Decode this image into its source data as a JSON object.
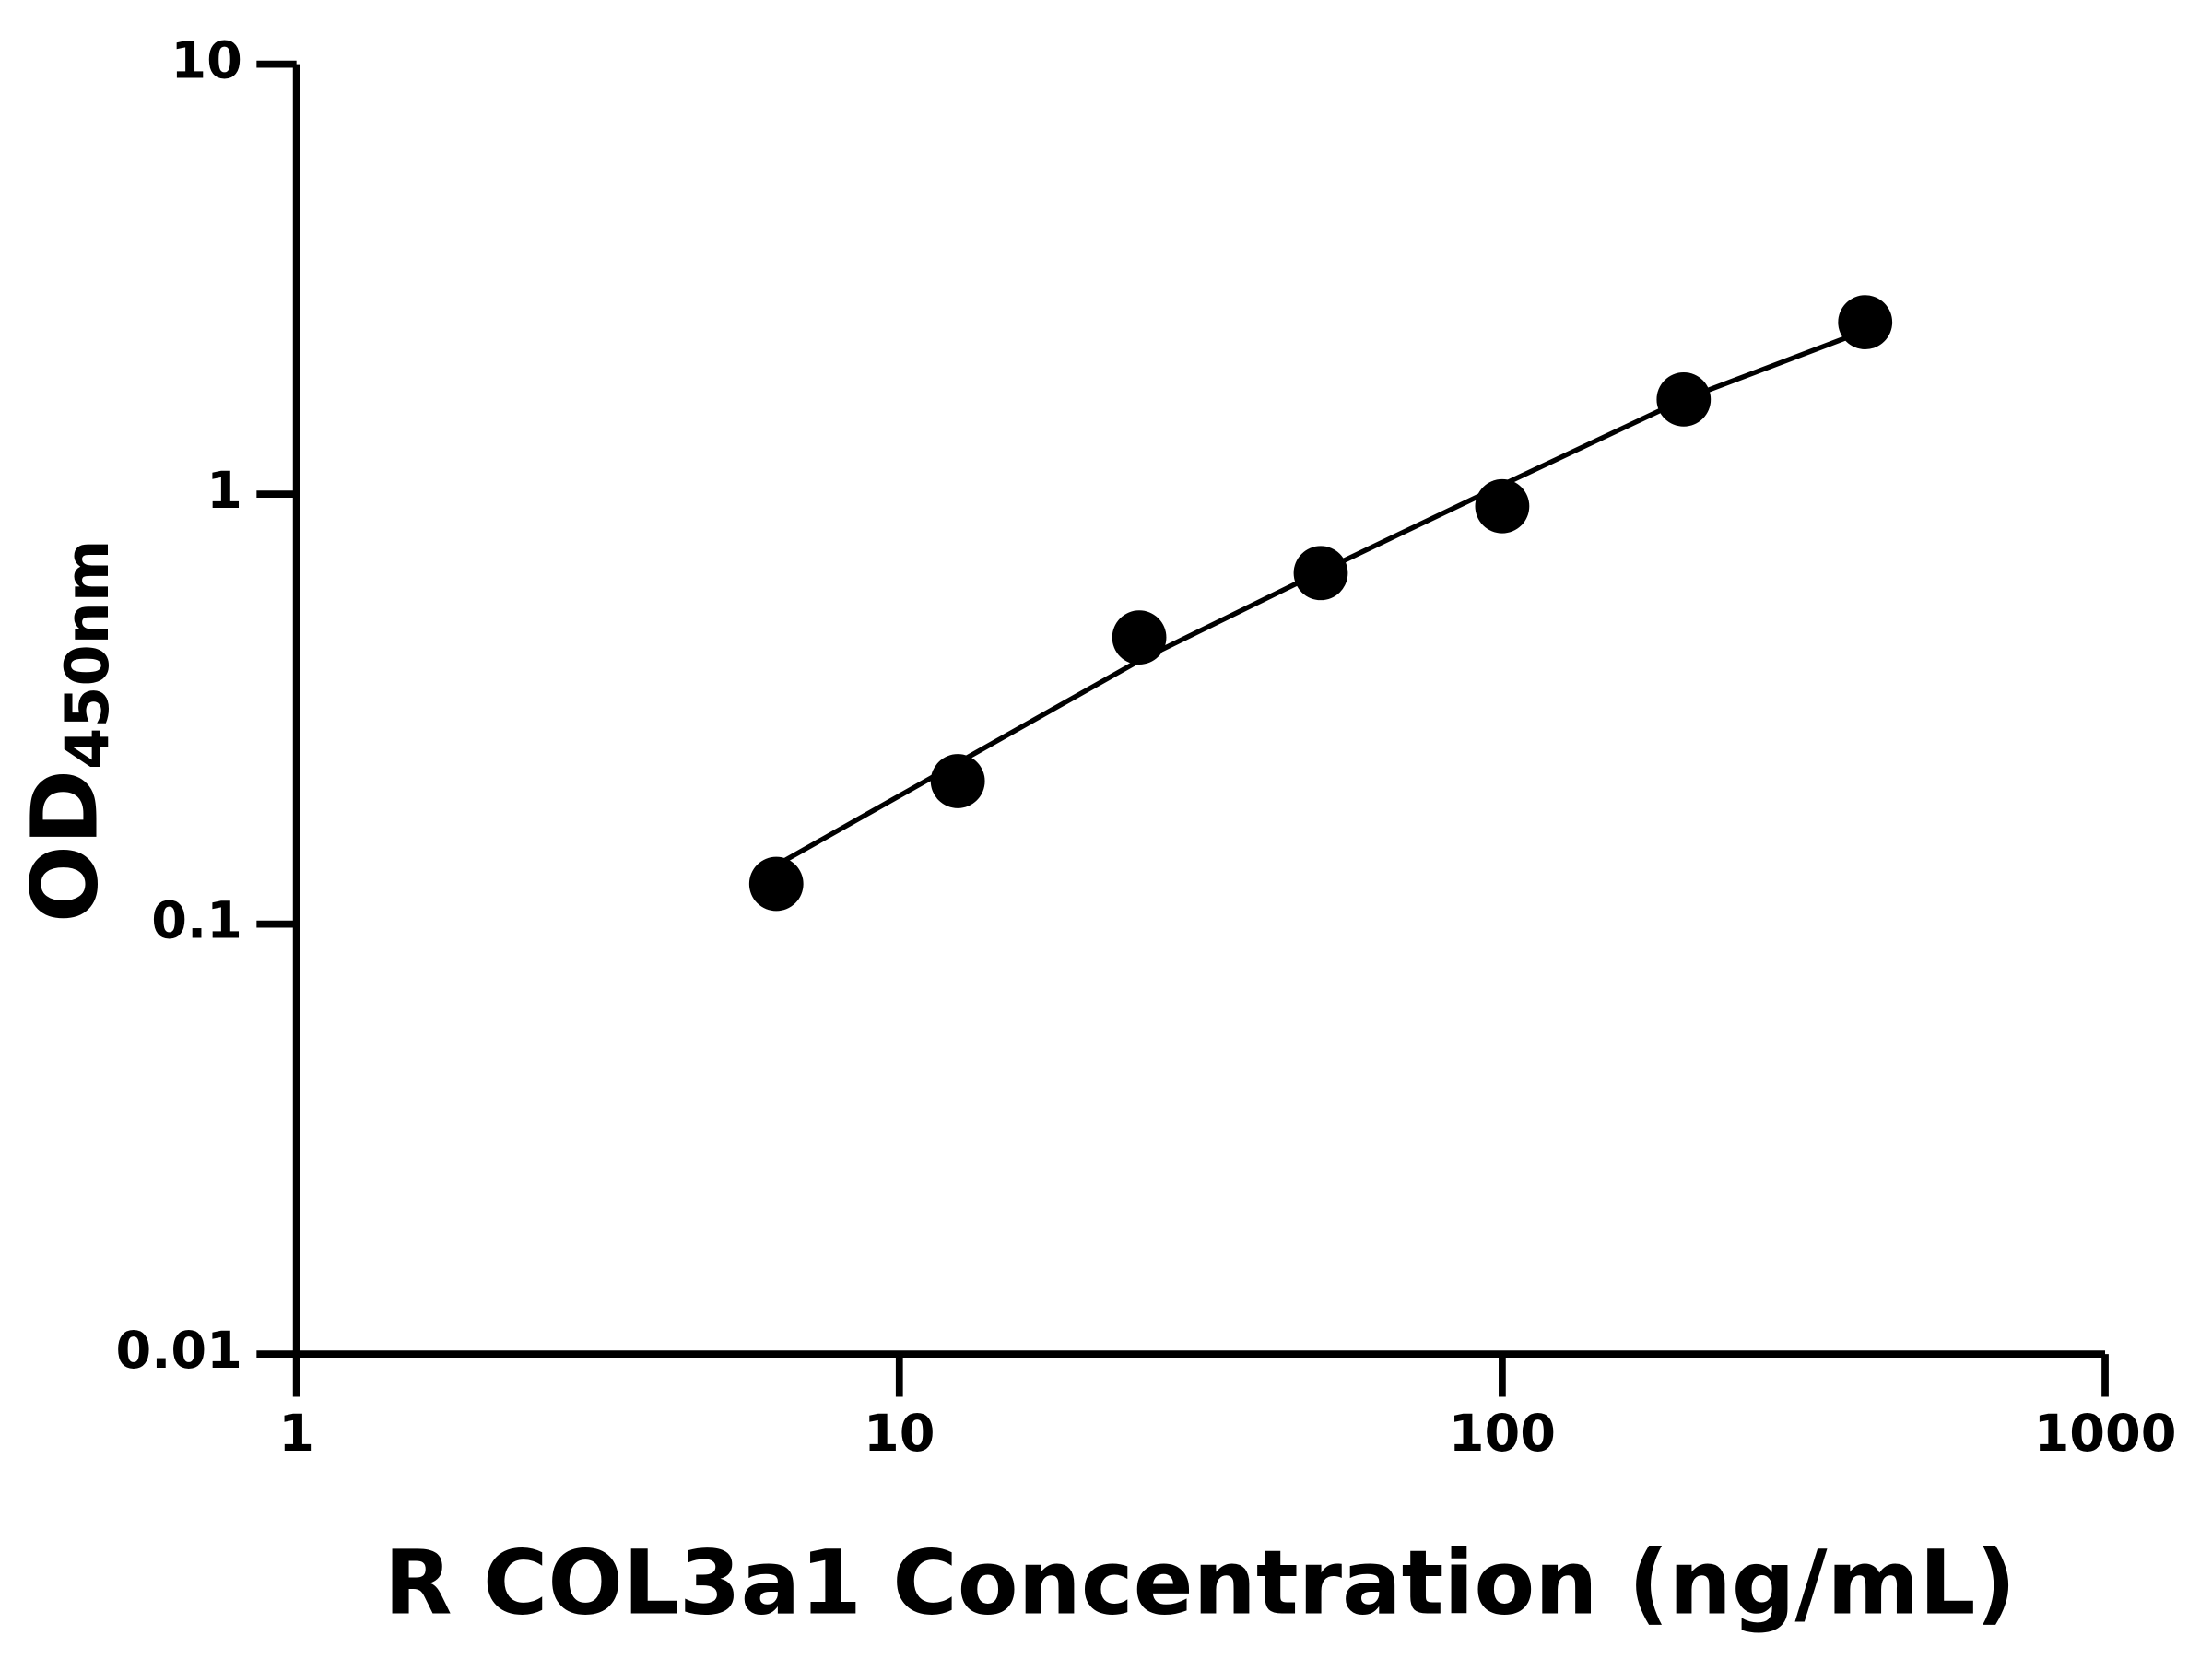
{
  "chart_data": {
    "type": "scatter",
    "x_label": "R COL3a1 Concentration (ng/mL)",
    "y_label": "OD",
    "y_label_subscript": "450nm",
    "x": [
      6.25,
      12.5,
      25,
      50,
      100,
      200,
      400
    ],
    "series": [
      {
        "color": "#000000",
        "values": [
          0.124,
          0.215,
          0.464,
          0.655,
          0.937,
          1.66,
          2.51
        ]
      }
    ],
    "fit": {
      "x": [
        6.25,
        12.5,
        25,
        50,
        100,
        200,
        400
      ],
      "y": [
        0.137,
        0.237,
        0.41,
        0.66,
        1.05,
        1.66,
        2.4
      ],
      "color": "#000000"
    },
    "xlim": [
      1,
      1000
    ],
    "ylim": [
      0.01,
      10
    ],
    "xticks": [
      1,
      10,
      100,
      1000
    ],
    "yticks": [
      0.01,
      0.1,
      1,
      10
    ],
    "xscale": "log",
    "yscale": "log",
    "grid": false
  }
}
